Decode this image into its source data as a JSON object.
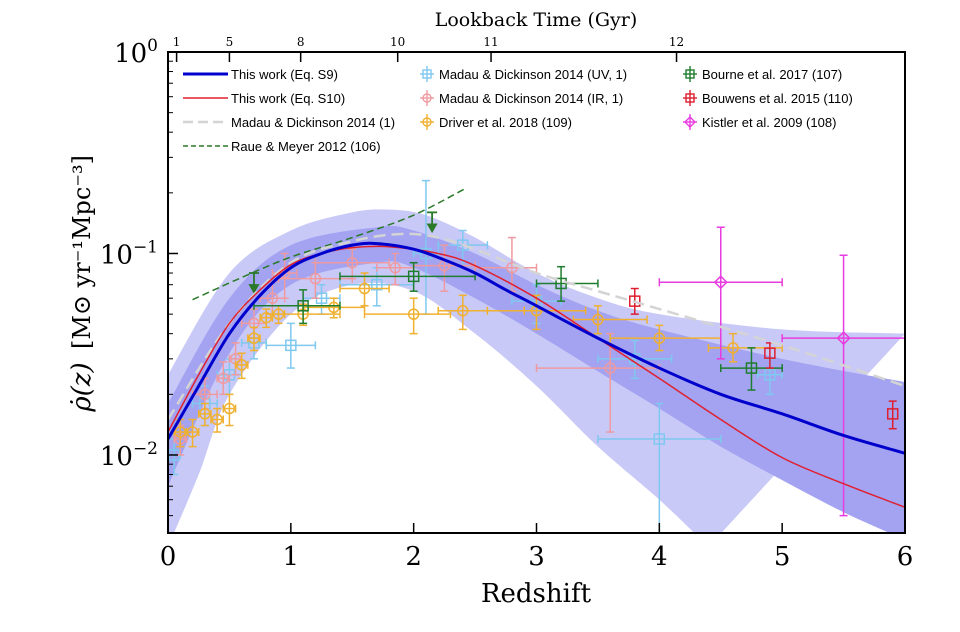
{
  "chart_data": {
    "type": "line",
    "xlabel": "Redshift",
    "ylabel_main": "ρ̇(z)",
    "ylabel_units": "[M⊙ yr⁻¹Mpc⁻³]",
    "top_axis_label": "Lookback Time (Gyr)",
    "xlim": [
      0,
      6
    ],
    "ylim": [
      0.0041,
      1
    ],
    "yscale": "log",
    "x_ticks": [
      "0",
      "1",
      "2",
      "3",
      "4",
      "5",
      "6"
    ],
    "y_ticks": [
      {
        "base": "10",
        "exp": "0",
        "value": 1
      },
      {
        "base": "10",
        "exp": "−1",
        "value": 0.1
      },
      {
        "base": "10",
        "exp": "−2",
        "value": 0.01
      }
    ],
    "top_ticks": [
      {
        "label": "1",
        "z": 0.07
      },
      {
        "label": "5",
        "z": 0.5
      },
      {
        "label": "8",
        "z": 1.08
      },
      {
        "label": "10",
        "z": 1.87
      },
      {
        "label": "11",
        "z": 2.63
      },
      {
        "label": "12",
        "z": 4.14
      }
    ],
    "legend_position": "top",
    "bands": {
      "outer": {
        "color": "#c9c9f8",
        "upper": [
          [
            0,
            0.025
          ],
          [
            0.5,
            0.08
          ],
          [
            1,
            0.13
          ],
          [
            1.5,
            0.16
          ],
          [
            1.8,
            0.165
          ],
          [
            2.1,
            0.155
          ],
          [
            2.5,
            0.12
          ],
          [
            3,
            0.08
          ],
          [
            3.5,
            0.06
          ],
          [
            4,
            0.05
          ],
          [
            5,
            0.042
          ],
          [
            6,
            0.04
          ]
        ],
        "lower": [
          [
            0,
            0.0035
          ],
          [
            0.25,
            0.008
          ],
          [
            0.5,
            0.02
          ],
          [
            1,
            0.05
          ],
          [
            1.5,
            0.07
          ],
          [
            2,
            0.065
          ],
          [
            2.5,
            0.04
          ],
          [
            3,
            0.022
          ],
          [
            3.5,
            0.011
          ],
          [
            4,
            0.006
          ],
          [
            4.4,
            0.0035
          ]
        ]
      },
      "inner": {
        "color": "#a3a3f1",
        "upper": [
          [
            0,
            0.018
          ],
          [
            0.5,
            0.06
          ],
          [
            1,
            0.11
          ],
          [
            1.7,
            0.135
          ],
          [
            2,
            0.13
          ],
          [
            2.5,
            0.1
          ],
          [
            3,
            0.07
          ],
          [
            3.5,
            0.052
          ],
          [
            4,
            0.042
          ],
          [
            5,
            0.03
          ],
          [
            6,
            0.023
          ]
        ],
        "lower": [
          [
            0,
            0.007
          ],
          [
            0.5,
            0.032
          ],
          [
            1,
            0.07
          ],
          [
            1.7,
            0.09
          ],
          [
            2,
            0.085
          ],
          [
            2.5,
            0.06
          ],
          [
            3,
            0.04
          ],
          [
            3.5,
            0.026
          ],
          [
            4,
            0.017
          ],
          [
            4.5,
            0.011
          ],
          [
            5,
            0.0075
          ],
          [
            5.5,
            0.0052
          ],
          [
            6,
            0.0038
          ]
        ]
      }
    },
    "lines": [
      {
        "name": "This work (Eq. S9)",
        "color": "#0000cc",
        "style": "solid",
        "width": 3,
        "points": [
          [
            0,
            0.012
          ],
          [
            0.25,
            0.022
          ],
          [
            0.5,
            0.04
          ],
          [
            0.75,
            0.062
          ],
          [
            1,
            0.085
          ],
          [
            1.25,
            0.1
          ],
          [
            1.5,
            0.11
          ],
          [
            1.7,
            0.112
          ],
          [
            2,
            0.105
          ],
          [
            2.25,
            0.093
          ],
          [
            2.5,
            0.08
          ],
          [
            2.75,
            0.066
          ],
          [
            3,
            0.055
          ],
          [
            3.5,
            0.038
          ],
          [
            4,
            0.027
          ],
          [
            4.5,
            0.02
          ],
          [
            5,
            0.016
          ],
          [
            5.5,
            0.0125
          ],
          [
            6,
            0.0102
          ]
        ]
      },
      {
        "name": "This work (Eq. S10)",
        "color": "#e02030",
        "style": "solid",
        "width": 1.5,
        "points": [
          [
            0,
            0.013
          ],
          [
            0.25,
            0.025
          ],
          [
            0.5,
            0.045
          ],
          [
            0.75,
            0.066
          ],
          [
            1,
            0.088
          ],
          [
            1.25,
            0.1
          ],
          [
            1.5,
            0.107
          ],
          [
            1.8,
            0.108
          ],
          [
            2.2,
            0.1
          ],
          [
            2.5,
            0.087
          ],
          [
            3,
            0.06
          ],
          [
            3.5,
            0.038
          ],
          [
            4,
            0.024
          ],
          [
            4.5,
            0.015
          ],
          [
            5,
            0.0097
          ],
          [
            5.5,
            0.0072
          ],
          [
            6,
            0.0055
          ]
        ]
      },
      {
        "name": "Madau & Dickinson 2014 (1)",
        "color": "#d4d4d4",
        "style": "dashed",
        "width": 2.5,
        "points": [
          [
            0,
            0.015
          ],
          [
            0.5,
            0.045
          ],
          [
            1,
            0.09
          ],
          [
            1.5,
            0.115
          ],
          [
            1.9,
            0.125
          ],
          [
            2.2,
            0.12
          ],
          [
            2.5,
            0.105
          ],
          [
            3,
            0.08
          ],
          [
            3.5,
            0.065
          ],
          [
            4,
            0.053
          ],
          [
            5,
            0.035
          ],
          [
            6,
            0.022
          ]
        ]
      },
      {
        "name": "Raue & Meyer 2012 (106)",
        "color": "#2a7a2a",
        "style": "dashed",
        "width": 1.5,
        "points": [
          [
            0.2,
            0.059
          ],
          [
            0.6,
            0.076
          ],
          [
            1,
            0.096
          ],
          [
            1.5,
            0.12
          ],
          [
            2,
            0.155
          ],
          [
            2.42,
            0.21
          ]
        ],
        "arrows": [
          [
            0.7,
            0.08
          ],
          [
            2.15,
            0.16
          ]
        ]
      }
    ],
    "scatter": [
      {
        "name": "Madau & Dickinson 2014 (UV, 1)",
        "color": "#7fc8ef",
        "marker": "square",
        "points": [
          [
            0.05,
            0.01,
            0,
            0.1,
            0.008,
            0.012
          ],
          [
            0.3,
            0.018,
            0.2,
            0.4,
            0.014,
            0.022
          ],
          [
            0.5,
            0.025,
            0.4,
            0.6,
            0.02,
            0.03
          ],
          [
            0.7,
            0.036,
            0.6,
            0.8,
            0.03,
            0.043
          ],
          [
            1.0,
            0.035,
            0.8,
            1.2,
            0.027,
            0.045
          ],
          [
            1.25,
            0.06,
            1.1,
            1.4,
            0.05,
            0.07
          ],
          [
            1.7,
            0.07,
            1.4,
            2.0,
            0.055,
            0.085
          ],
          [
            2.1,
            0.1,
            2.0,
            2.2,
            0.05,
            0.23
          ],
          [
            2.4,
            0.11,
            2.2,
            2.6,
            0.085,
            0.13
          ],
          [
            3.0,
            0.058,
            2.8,
            3.2,
            0.045,
            0.07
          ],
          [
            3.8,
            0.03,
            3.5,
            4.1,
            0.024,
            0.037
          ],
          [
            4.0,
            0.012,
            3.5,
            4.5,
            0.004,
            0.018
          ],
          [
            4.9,
            0.025,
            4.8,
            5.0,
            0.02,
            0.03
          ]
        ]
      },
      {
        "name": "Madau & Dickinson 2014 (IR, 1)",
        "color": "#ee9aa0",
        "marker": "circle",
        "points": [
          [
            0.1,
            0.012,
            0.05,
            0.15,
            0.01,
            0.014
          ],
          [
            0.3,
            0.02,
            0.2,
            0.4,
            0.017,
            0.024
          ],
          [
            0.45,
            0.024,
            0.4,
            0.5,
            0.02,
            0.029
          ],
          [
            0.55,
            0.03,
            0.5,
            0.6,
            0.025,
            0.036
          ],
          [
            0.7,
            0.045,
            0.6,
            0.8,
            0.038,
            0.053
          ],
          [
            0.85,
            0.06,
            0.75,
            0.95,
            0.05,
            0.072
          ],
          [
            0.95,
            0.08,
            0.85,
            1.05,
            0.06,
            0.1
          ],
          [
            1.2,
            0.075,
            0.9,
            1.5,
            0.06,
            0.09
          ],
          [
            1.5,
            0.09,
            1.2,
            1.8,
            0.075,
            0.105
          ],
          [
            1.85,
            0.085,
            1.7,
            2.0,
            0.07,
            0.1
          ],
          [
            2.25,
            0.087,
            2.0,
            2.5,
            0.065,
            0.11
          ],
          [
            2.8,
            0.085,
            2.5,
            3.0,
            0.065,
            0.12
          ],
          [
            3.6,
            0.027,
            3.0,
            4.0,
            0.013,
            0.04
          ]
        ]
      },
      {
        "name": "Driver et al. 2018 (109)",
        "color": "#f0b030",
        "marker": "circle",
        "points": [
          [
            0.1,
            0.013,
            0.05,
            0.15,
            0.011,
            0.015
          ],
          [
            0.2,
            0.013,
            0.15,
            0.25,
            0.011,
            0.015
          ],
          [
            0.3,
            0.016,
            0.25,
            0.35,
            0.014,
            0.018
          ],
          [
            0.4,
            0.015,
            0.35,
            0.45,
            0.013,
            0.017
          ],
          [
            0.5,
            0.017,
            0.45,
            0.55,
            0.014,
            0.02
          ],
          [
            0.6,
            0.028,
            0.55,
            0.65,
            0.024,
            0.032
          ],
          [
            0.7,
            0.038,
            0.65,
            0.75,
            0.033,
            0.043
          ],
          [
            0.8,
            0.048,
            0.75,
            0.85,
            0.043,
            0.053
          ],
          [
            0.9,
            0.05,
            0.85,
            0.95,
            0.045,
            0.055
          ],
          [
            1.1,
            0.05,
            0.8,
            1.4,
            0.044,
            0.056
          ],
          [
            1.35,
            0.054,
            1.1,
            1.6,
            0.048,
            0.06
          ],
          [
            1.6,
            0.067,
            1.4,
            1.8,
            0.055,
            0.08
          ],
          [
            2.0,
            0.05,
            1.6,
            2.3,
            0.04,
            0.06
          ],
          [
            2.4,
            0.052,
            2.2,
            2.9,
            0.042,
            0.062
          ],
          [
            3.0,
            0.052,
            2.6,
            3.4,
            0.042,
            0.062
          ],
          [
            3.5,
            0.047,
            3.3,
            3.9,
            0.04,
            0.055
          ],
          [
            4.0,
            0.038,
            3.6,
            4.5,
            0.033,
            0.044
          ],
          [
            4.6,
            0.034,
            4.4,
            5.0,
            0.029,
            0.04
          ]
        ]
      },
      {
        "name": "Bourne et al. 2017 (107)",
        "color": "#1e7d2e",
        "marker": "square",
        "points": [
          [
            1.1,
            0.055,
            0.7,
            1.4,
            0.045,
            0.066
          ],
          [
            2.0,
            0.077,
            1.4,
            2.5,
            0.065,
            0.09
          ],
          [
            3.2,
            0.071,
            3.0,
            3.5,
            0.058,
            0.086
          ],
          [
            4.75,
            0.027,
            4.5,
            5.0,
            0.021,
            0.034
          ]
        ]
      },
      {
        "name": "Bouwens et al. 2015 (110)",
        "color": "#dd1f30",
        "marker": "square",
        "points": [
          [
            3.8,
            0.058,
            3.8,
            3.8,
            0.05,
            0.067
          ],
          [
            4.9,
            0.032,
            4.9,
            4.9,
            0.027,
            0.036
          ],
          [
            5.9,
            0.016,
            5.9,
            5.9,
            0.0135,
            0.0185
          ]
        ]
      },
      {
        "name": "Kistler et al. 2009 (108)",
        "color": "#e83ce0",
        "marker": "diamond",
        "points": [
          [
            4.5,
            0.072,
            4.0,
            5.0,
            0.03,
            0.135
          ],
          [
            5.5,
            0.038,
            5.0,
            6.0,
            0.005,
            0.098
          ]
        ]
      }
    ]
  }
}
